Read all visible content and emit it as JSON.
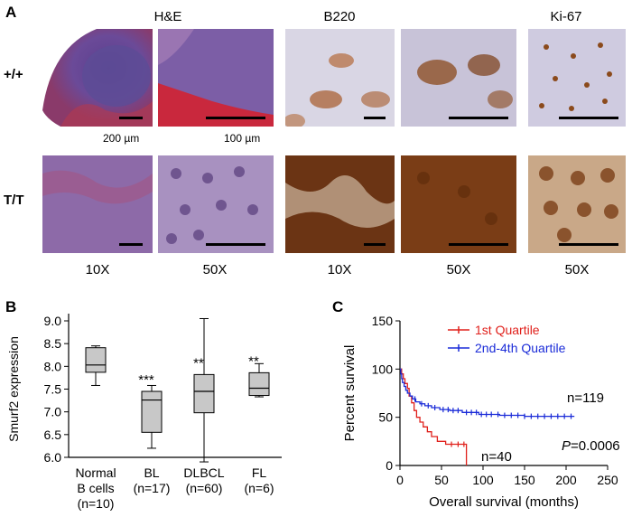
{
  "panel_a": {
    "label": "A",
    "columns": [
      "H&E",
      "B220",
      "Ki-67"
    ],
    "rows": [
      "+/+",
      "T/T"
    ],
    "scale_bars": [
      "200 µm",
      "100 µm"
    ],
    "magnifications": [
      "10X",
      "50X",
      "10X",
      "50X",
      "50X"
    ]
  },
  "panel_b": {
    "label": "B"
  },
  "panel_c": {
    "label": "C"
  },
  "colors": {
    "he_low": "#7a4f95",
    "he_high": "#8d6aa8",
    "he_red": "#c03a4a",
    "dab_brown": "#7a3d16",
    "hema_blue": "#cfcbe0",
    "quartile1": "#e0201b",
    "quartile2_4": "#1a2bd8",
    "box_fill": "#c8c8c8"
  },
  "chart_data": [
    {
      "type": "box",
      "ylabel": "Smurf2 expression",
      "ylim": [
        6.0,
        9.0
      ],
      "yticks": [
        "6.0",
        "6.5",
        "7.0",
        "7.5",
        "8.0",
        "8.5",
        "9.0"
      ],
      "categories": [
        {
          "line1": "Normal",
          "line2": "B cells",
          "line3": "(n=10)",
          "min": 7.58,
          "q1": 7.87,
          "median": 8.03,
          "q3": 8.41,
          "max": 8.45,
          "sig": ""
        },
        {
          "line1": "BL",
          "line2": "(n=17)",
          "line3": "",
          "min": 6.2,
          "q1": 6.55,
          "median": 7.26,
          "q3": 7.45,
          "max": 7.58,
          "sig": "***"
        },
        {
          "line1": "DLBCL",
          "line2": "(n=60)",
          "line3": "",
          "min": 5.9,
          "q1": 6.98,
          "median": 7.45,
          "q3": 7.82,
          "max": 9.05,
          "sig": "**"
        },
        {
          "line1": "FL",
          "line2": "(n=6)",
          "line3": "",
          "min": 7.33,
          "q1": 7.36,
          "median": 7.52,
          "q3": 7.86,
          "max": 8.06,
          "sig": "**"
        }
      ]
    },
    {
      "type": "line",
      "subtype": "kaplan-meier",
      "xlabel": "Overall survival (months)",
      "ylabel": "Percent survival",
      "xlim": [
        0,
        250
      ],
      "ylim": [
        0,
        150
      ],
      "xticks": [
        "0",
        "50",
        "100",
        "150",
        "200",
        "250"
      ],
      "yticks": [
        "0",
        "50",
        "100",
        "150"
      ],
      "legend_position": "top",
      "series": [
        {
          "name": "1st Quartile",
          "n_label": "n=40",
          "points": [
            [
              0,
              100
            ],
            [
              2,
              95
            ],
            [
              4,
              90
            ],
            [
              6,
              85
            ],
            [
              9,
              80
            ],
            [
              11,
              72
            ],
            [
              14,
              65
            ],
            [
              17,
              57
            ],
            [
              20,
              50
            ],
            [
              24,
              45
            ],
            [
              28,
              40
            ],
            [
              33,
              35
            ],
            [
              38,
              30
            ],
            [
              45,
              25
            ],
            [
              55,
              22
            ],
            [
              65,
              22
            ],
            [
              72,
              22
            ],
            [
              80,
              22
            ],
            [
              80,
              0
            ]
          ],
          "censor": [
            62,
            70,
            77
          ]
        },
        {
          "name": "2nd-4th Quartile",
          "n_label": "n=119",
          "points": [
            [
              0,
              100
            ],
            [
              1,
              95
            ],
            [
              2,
              90
            ],
            [
              3,
              86
            ],
            [
              5,
              82
            ],
            [
              7,
              78
            ],
            [
              9,
              75
            ],
            [
              12,
              72
            ],
            [
              15,
              69
            ],
            [
              19,
              66
            ],
            [
              24,
              64
            ],
            [
              30,
              62
            ],
            [
              38,
              60
            ],
            [
              48,
              58
            ],
            [
              60,
              57
            ],
            [
              75,
              55
            ],
            [
              95,
              53
            ],
            [
              120,
              52
            ],
            [
              150,
              51
            ],
            [
              210,
              51
            ]
          ],
          "censor": [
            18,
            26,
            34,
            42,
            52,
            58,
            64,
            70,
            80,
            86,
            92,
            98,
            104,
            110,
            118,
            126,
            134,
            142,
            150,
            158,
            166,
            174,
            182,
            190,
            198,
            206
          ]
        }
      ],
      "annotation_prefix": "P",
      "annotation_value": "=0.0006"
    }
  ]
}
